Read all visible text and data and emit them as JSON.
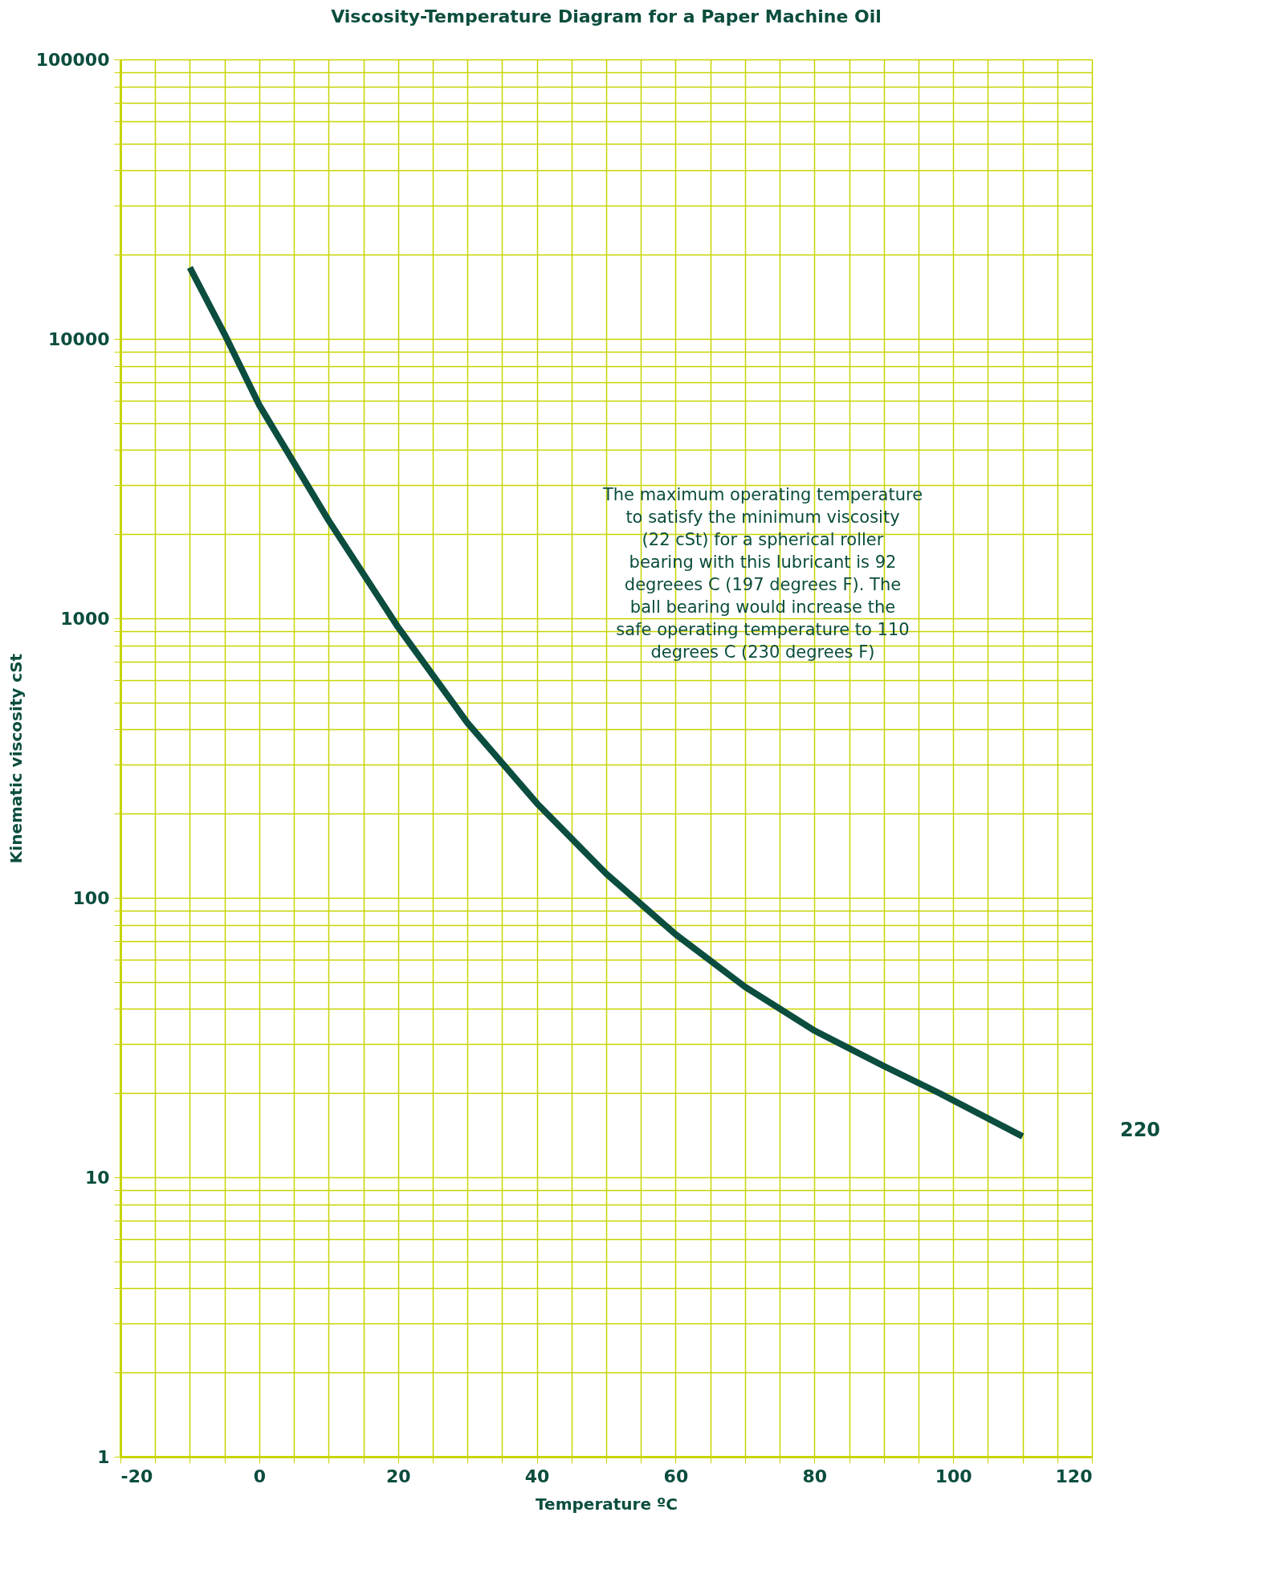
{
  "chart_data": {
    "type": "line",
    "title": "Viscosity-Temperature Diagram for a Paper Machine Oil",
    "xlabel": "Temperature  ºC",
    "ylabel": "Kinematic viscosity cSt",
    "x": [
      -10,
      -5,
      0,
      10,
      20,
      30,
      40,
      50,
      60,
      70,
      80,
      90,
      98,
      110
    ],
    "series": [
      {
        "color": "#0b4d3e",
        "values": [
          18000,
          10400,
          5800,
          2240,
          930,
          423,
          218,
          122,
          74,
          48,
          33.5,
          25,
          20,
          14
        ]
      }
    ],
    "log": "y",
    "grid": true,
    "marker": "none",
    "line_style": "solid",
    "xlim": [
      -20,
      120
    ],
    "ylim": [
      1,
      100000
    ],
    "xticks": [
      -20,
      {
        "value": -15,
        "label": null
      },
      {
        "value": -10,
        "label": null
      },
      {
        "value": -5,
        "label": null
      },
      0,
      {
        "value": 5,
        "label": null
      },
      {
        "value": 10,
        "label": null
      },
      {
        "value": 15,
        "label": null
      },
      20,
      {
        "value": 25,
        "label": null
      },
      {
        "value": 30,
        "label": null
      },
      {
        "value": 35,
        "label": null
      },
      40,
      {
        "value": 45,
        "label": null
      },
      {
        "value": 50,
        "label": null
      },
      {
        "value": 55,
        "label": null
      },
      60,
      {
        "value": 65,
        "label": null
      },
      {
        "value": 70,
        "label": null
      },
      {
        "value": 75,
        "label": null
      },
      80,
      {
        "value": 85,
        "label": null
      },
      {
        "value": 90,
        "label": null
      },
      {
        "value": 95,
        "label": null
      },
      100,
      {
        "value": 105,
        "label": null
      },
      {
        "value": 110,
        "label": null
      },
      {
        "value": 115,
        "label": null
      },
      120
    ],
    "yticks": [
      1,
      {
        "value": 2,
        "label": null
      },
      {
        "value": 3,
        "label": null
      },
      {
        "value": 4,
        "label": null
      },
      {
        "value": 5,
        "label": null
      },
      {
        "value": 6,
        "label": null
      },
      {
        "value": 7,
        "label": null
      },
      {
        "value": 8,
        "label": null
      },
      {
        "value": 9,
        "label": null
      },
      10,
      {
        "value": 20,
        "label": null
      },
      {
        "value": 30,
        "label": null
      },
      {
        "value": 40,
        "label": null
      },
      {
        "value": 50,
        "label": null
      },
      {
        "value": 60,
        "label": null
      },
      {
        "value": 70,
        "label": null
      },
      {
        "value": 80,
        "label": null
      },
      {
        "value": 90,
        "label": null
      },
      100,
      {
        "value": 200,
        "label": null
      },
      {
        "value": 300,
        "label": null
      },
      {
        "value": 400,
        "label": null
      },
      {
        "value": 500,
        "label": null
      },
      {
        "value": 600,
        "label": null
      },
      {
        "value": 700,
        "label": null
      },
      {
        "value": 800,
        "label": null
      },
      {
        "value": 900,
        "label": null
      },
      1000,
      {
        "value": 2000,
        "label": null
      },
      {
        "value": 3000,
        "label": null
      },
      {
        "value": 4000,
        "label": null
      },
      {
        "value": 5000,
        "label": null
      },
      {
        "value": 6000,
        "label": null
      },
      {
        "value": 7000,
        "label": null
      },
      {
        "value": 8000,
        "label": null
      },
      {
        "value": 9000,
        "label": null
      },
      10000,
      {
        "value": 20000,
        "label": null
      },
      {
        "value": 30000,
        "label": null
      },
      {
        "value": 40000,
        "label": null
      },
      {
        "value": 50000,
        "label": null
      },
      {
        "value": 60000,
        "label": null
      },
      {
        "value": 70000,
        "label": null
      },
      {
        "value": 80000,
        "label": null
      },
      {
        "value": 90000,
        "label": null
      },
      100000
    ],
    "annotations": [
      "The maximum operating temperature to satisfy the minimum viscosity (22 cSt) for a spherical roller bearing with this lubricant is 92 degreees C (197 degrees F). The ball bearing would increase the safe operating temperature to 110 degrees C (230 degrees F)",
      "220"
    ]
  }
}
